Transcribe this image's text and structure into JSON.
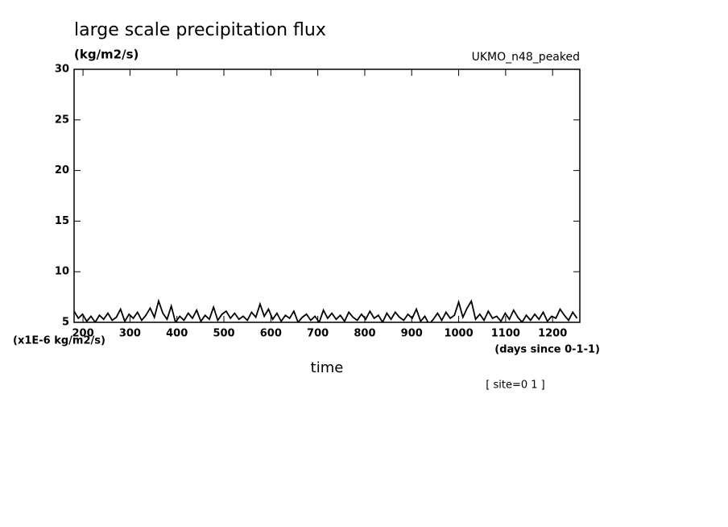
{
  "chart_data": {
    "type": "line",
    "title": "large scale precipitation flux",
    "subtitle": "(kg/m2/s)",
    "dataset_label": "UKMO_n48_peaked",
    "y_unit_label": "(x1E-6 kg/m2/s)",
    "x_unit_label": "(days since 0-1-1)",
    "xlabel": "time",
    "annotation": "[ site=0 1 ]",
    "x": [
      181,
      190,
      199,
      208,
      217,
      226,
      235,
      244,
      253,
      262,
      271,
      280,
      289,
      298,
      307,
      316,
      325,
      334,
      343,
      352,
      361,
      370,
      379,
      388,
      397,
      406,
      415,
      424,
      433,
      442,
      451,
      460,
      469,
      478,
      487,
      496,
      505,
      514,
      523,
      532,
      541,
      550,
      559,
      568,
      577,
      586,
      595,
      604,
      613,
      622,
      631,
      640,
      649,
      658,
      667,
      676,
      685,
      694,
      703,
      712,
      721,
      730,
      739,
      748,
      757,
      766,
      775,
      784,
      793,
      802,
      811,
      820,
      829,
      838,
      847,
      856,
      865,
      874,
      883,
      892,
      901,
      910,
      919,
      928,
      937,
      946,
      955,
      964,
      973,
      982,
      991,
      1000,
      1009,
      1018,
      1027,
      1036,
      1045,
      1054,
      1063,
      1072,
      1081,
      1090,
      1099,
      1108,
      1117,
      1126,
      1135,
      1144,
      1153,
      1162,
      1171,
      1180,
      1189,
      1198,
      1207,
      1216,
      1225,
      1234,
      1243,
      1252
    ],
    "series": [
      {
        "color": "#000000",
        "values": [
          6.1,
          5.4,
          5.8,
          5.1,
          5.6,
          5.0,
          5.7,
          5.3,
          5.9,
          5.2,
          5.5,
          6.3,
          5.1,
          5.8,
          5.4,
          6.0,
          5.2,
          5.7,
          6.4,
          5.5,
          7.1,
          5.9,
          5.3,
          6.6,
          5.0,
          5.6,
          5.2,
          5.9,
          5.4,
          6.2,
          5.1,
          5.7,
          5.3,
          6.5,
          5.2,
          5.8,
          6.1,
          5.4,
          5.9,
          5.3,
          5.6,
          5.2,
          6.0,
          5.5,
          6.8,
          5.6,
          6.3,
          5.3,
          5.9,
          5.1,
          5.7,
          5.4,
          6.1,
          5.0,
          5.5,
          5.8,
          5.2,
          5.6,
          5.0,
          6.2,
          5.4,
          5.9,
          5.3,
          5.7,
          5.1,
          6.0,
          5.5,
          5.2,
          5.8,
          5.3,
          6.1,
          5.4,
          5.7,
          5.0,
          5.9,
          5.3,
          6.0,
          5.5,
          5.2,
          5.8,
          5.4,
          6.3,
          5.1,
          5.6,
          4.8,
          5.3,
          5.9,
          5.2,
          6.0,
          5.4,
          5.7,
          7.0,
          5.5,
          6.4,
          7.1,
          5.3,
          5.8,
          5.2,
          6.1,
          5.4,
          5.6,
          5.1,
          5.9,
          5.3,
          6.2,
          5.5,
          5.0,
          5.7,
          5.2,
          5.8,
          5.3,
          6.0,
          5.1,
          5.6,
          5.4,
          6.3,
          5.7,
          5.2,
          6.0,
          5.4
        ]
      }
    ],
    "xlim": [
      181,
      1258
    ],
    "ylim": [
      5,
      30
    ],
    "xticks": [
      200,
      300,
      400,
      500,
      600,
      700,
      800,
      900,
      1000,
      1100,
      1200
    ],
    "yticks": [
      5,
      10,
      15,
      20,
      25,
      30
    ],
    "grid": false
  }
}
